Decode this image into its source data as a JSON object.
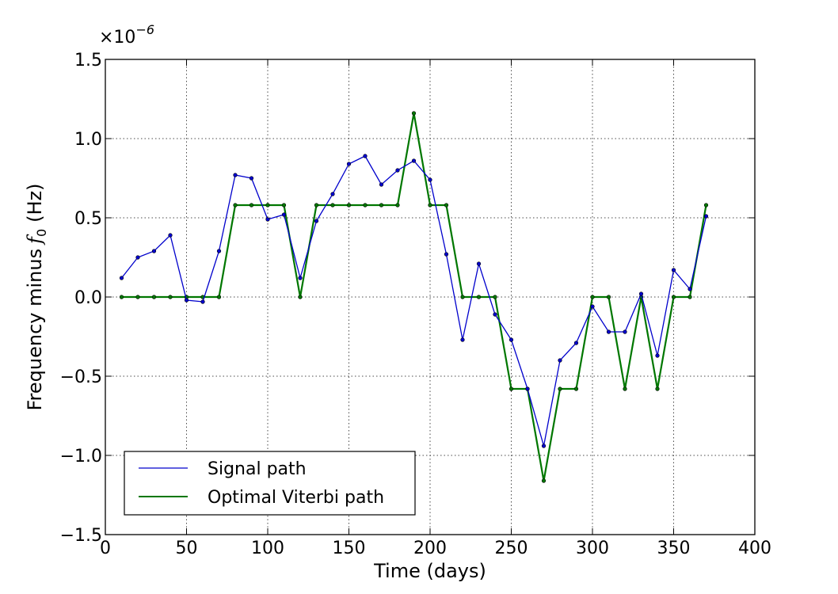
{
  "chart_data": {
    "type": "line",
    "title": "",
    "xlabel": "Time (days)",
    "ylabel": "Frequency minus",
    "ylabel_symbol": "f",
    "ylabel_subscript": "0",
    "ylabel_unit": "(Hz)",
    "y_multiplier_base": "×10",
    "y_multiplier_exponent": "−6",
    "xlim": [
      0,
      400
    ],
    "ylim": [
      -1.5,
      1.5
    ],
    "x_ticks": [
      0,
      50,
      100,
      150,
      200,
      250,
      300,
      350,
      400
    ],
    "x_tick_labels": [
      "0",
      "50",
      "100",
      "150",
      "200",
      "250",
      "300",
      "350",
      "400"
    ],
    "y_ticks": [
      -1.5,
      -1.0,
      -0.5,
      0.0,
      0.5,
      1.0,
      1.5
    ],
    "y_tick_labels": [
      "−1.5",
      "−1.0",
      "−0.5",
      "0.0",
      "0.5",
      "1.0",
      "1.5"
    ],
    "grid": true,
    "legend_position": "lower-left",
    "x": [
      10,
      20,
      30,
      40,
      50,
      60,
      70,
      80,
      90,
      100,
      110,
      120,
      130,
      140,
      150,
      160,
      170,
      180,
      190,
      200,
      210,
      220,
      230,
      240,
      250,
      260,
      270,
      280,
      290,
      300,
      310,
      320,
      330,
      340,
      350,
      360,
      370
    ],
    "series": [
      {
        "name": "Signal path",
        "color": "#0000cc",
        "values": [
          0.12,
          0.25,
          0.29,
          0.39,
          -0.02,
          -0.03,
          0.29,
          0.77,
          0.75,
          0.49,
          0.52,
          0.12,
          0.48,
          0.65,
          0.84,
          0.89,
          0.71,
          0.8,
          0.86,
          0.74,
          0.27,
          -0.27,
          0.21,
          -0.11,
          -0.27,
          -0.58,
          -0.94,
          -0.4,
          -0.29,
          -0.06,
          -0.22,
          -0.22,
          0.02,
          -0.37,
          0.17,
          0.05,
          0.51
        ]
      },
      {
        "name": "Optimal Viterbi path",
        "color": "#007700",
        "values": [
          0.0,
          0.0,
          0.0,
          0.0,
          0.0,
          0.0,
          0.0,
          0.58,
          0.58,
          0.58,
          0.58,
          0.0,
          0.58,
          0.58,
          0.58,
          0.58,
          0.58,
          0.58,
          1.16,
          0.58,
          0.58,
          0.0,
          0.0,
          0.0,
          -0.58,
          -0.58,
          -1.16,
          -0.58,
          -0.58,
          0.0,
          0.0,
          -0.58,
          0.0,
          -0.58,
          0.0,
          0.0,
          0.58
        ]
      }
    ]
  }
}
